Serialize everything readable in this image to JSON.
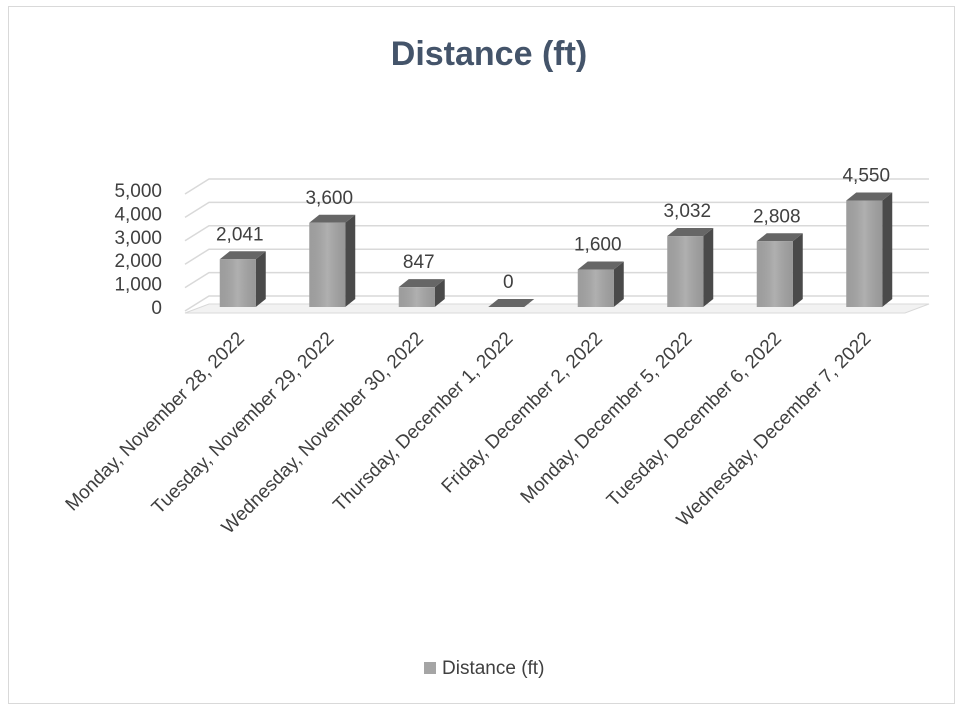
{
  "chart_data": {
    "type": "bar",
    "title": "Distance (ft)",
    "categories": [
      "Monday, November 28, 2022",
      "Tuesday, November 29, 2022",
      "Wednesday, November 30, 2022",
      "Thursday, December 1, 2022",
      "Friday, December 2, 2022",
      "Monday, December 5, 2022",
      "Tuesday, December 6, 2022",
      "Wednesday, December 7, 2022"
    ],
    "series": [
      {
        "name": "Distance (ft)",
        "color": "#a5a5a5",
        "values": [
          2041,
          3600,
          847,
          0,
          1600,
          3032,
          2808,
          4550
        ],
        "value_labels": [
          "2,041",
          "3,600",
          "847",
          "0",
          "1,600",
          "3,032",
          "2,808",
          "4,550"
        ]
      }
    ],
    "ylim": [
      0,
      5000
    ],
    "yticks": [
      0,
      {
        "value": 1000,
        "label": "1,000"
      },
      {
        "value": 2000,
        "label": "2,000"
      },
      {
        "value": 3000,
        "label": "3,000"
      },
      {
        "value": 4000,
        "label": "4,000"
      },
      {
        "value": 5000,
        "label": "5,000"
      }
    ],
    "grid": true,
    "legend": "bottom"
  }
}
